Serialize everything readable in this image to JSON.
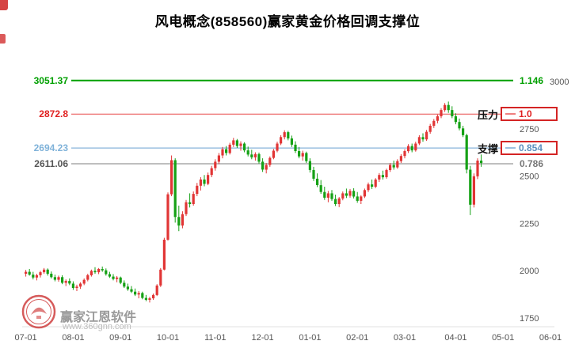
{
  "chart_data": {
    "type": "candlestick",
    "title": "风电概念(858560)赢家黄金价格回调支撑位",
    "symbol": "858560",
    "up_color": "#e13535",
    "down_color": "#15a115",
    "ylim": [
      1750,
      3100
    ],
    "y_ticks": [
      3000,
      2750,
      2500,
      2250,
      2000,
      1750
    ],
    "x_labels": [
      "07-01",
      "08-01",
      "09-01",
      "10-01",
      "11-01",
      "12-01",
      "01-01",
      "02-01",
      "03-01",
      "04-01",
      "05-01",
      "06-01"
    ],
    "x_label_indices": [
      0,
      13,
      26,
      39,
      52,
      65,
      78,
      91,
      104,
      118,
      131,
      144
    ],
    "levels": [
      {
        "value": 3051.37,
        "label": "3051.37",
        "right_label": "1.146",
        "color": "#00a000",
        "label_color": "#00a000",
        "line_width": 2
      },
      {
        "value": 2872.8,
        "label": "2872.8",
        "right_label": "1.0",
        "name": "压力",
        "color": "#ef8080",
        "label_color": "#e02020",
        "value_color": "#e02020",
        "line_width": 1.5
      },
      {
        "value": 2694.23,
        "label": "2694.23",
        "right_label": "0.854",
        "name": "支撑",
        "color": "#9cc0e0",
        "label_color": "#7fb2d9",
        "value_color": "#5b8fbe",
        "line_width": 1.5
      },
      {
        "value": 2611.06,
        "label": "2611.06",
        "right_label": "0.786",
        "color": "#aaaaaa",
        "label_color": "#555555",
        "right_color": "#777777",
        "line_width": 1.5
      }
    ],
    "ohlc": [
      [
        2030,
        2050,
        2015,
        2040
      ],
      [
        2040,
        2055,
        2020,
        2025
      ],
      [
        2025,
        2040,
        2000,
        2010
      ],
      [
        2010,
        2030,
        1995,
        2022
      ],
      [
        2022,
        2045,
        2010,
        2038
      ],
      [
        2038,
        2060,
        2030,
        2052
      ],
      [
        2052,
        2058,
        2020,
        2030
      ],
      [
        2030,
        2042,
        2005,
        2012
      ],
      [
        2012,
        2025,
        1990,
        1998
      ],
      [
        1998,
        2020,
        1988,
        2012
      ],
      [
        2012,
        2022,
        1975,
        1982
      ],
      [
        1982,
        2000,
        1965,
        1992
      ],
      [
        1992,
        2005,
        1970,
        1978
      ],
      [
        1978,
        1990,
        1945,
        1955
      ],
      [
        1955,
        1972,
        1938,
        1962
      ],
      [
        1962,
        1985,
        1950,
        1978
      ],
      [
        1978,
        2005,
        1970,
        1998
      ],
      [
        1998,
        2030,
        1990,
        2022
      ],
      [
        2022,
        2052,
        2015,
        2045
      ],
      [
        2045,
        2065,
        2030,
        2038
      ],
      [
        2038,
        2060,
        2028,
        2055
      ],
      [
        2055,
        2068,
        2040,
        2048
      ],
      [
        2048,
        2058,
        2020,
        2028
      ],
      [
        2028,
        2040,
        2008,
        2015
      ],
      [
        2015,
        2028,
        1995,
        2002
      ],
      [
        2002,
        2018,
        1985,
        2010
      ],
      [
        2010,
        2015,
        1975,
        1982
      ],
      [
        1982,
        1995,
        1955,
        1962
      ],
      [
        1962,
        1978,
        1940,
        1948
      ],
      [
        1948,
        1965,
        1928,
        1935
      ],
      [
        1935,
        1952,
        1912,
        1920
      ],
      [
        1920,
        1938,
        1900,
        1928
      ],
      [
        1928,
        1935,
        1895,
        1902
      ],
      [
        1902,
        1918,
        1885,
        1892
      ],
      [
        1892,
        1908,
        1878,
        1900
      ],
      [
        1900,
        1925,
        1892,
        1918
      ],
      [
        1918,
        1975,
        1912,
        1968
      ],
      [
        1968,
        2060,
        1960,
        2052
      ],
      [
        2052,
        2220,
        2048,
        2210
      ],
      [
        2210,
        2460,
        2205,
        2450
      ],
      [
        2450,
        2655,
        2440,
        2630
      ],
      [
        2630,
        2640,
        2300,
        2330
      ],
      [
        2330,
        2390,
        2255,
        2285
      ],
      [
        2285,
        2360,
        2270,
        2345
      ],
      [
        2345,
        2420,
        2335,
        2408
      ],
      [
        2408,
        2455,
        2380,
        2398
      ],
      [
        2398,
        2465,
        2390,
        2452
      ],
      [
        2452,
        2510,
        2440,
        2495
      ],
      [
        2495,
        2540,
        2470,
        2528
      ],
      [
        2528,
        2552,
        2492,
        2505
      ],
      [
        2505,
        2565,
        2498,
        2552
      ],
      [
        2552,
        2600,
        2540,
        2588
      ],
      [
        2588,
        2635,
        2575,
        2622
      ],
      [
        2622,
        2668,
        2610,
        2655
      ],
      [
        2655,
        2700,
        2640,
        2688
      ],
      [
        2688,
        2705,
        2655,
        2668
      ],
      [
        2668,
        2722,
        2660,
        2712
      ],
      [
        2712,
        2748,
        2700,
        2735
      ],
      [
        2735,
        2742,
        2695,
        2705
      ],
      [
        2705,
        2730,
        2680,
        2718
      ],
      [
        2718,
        2725,
        2672,
        2682
      ],
      [
        2682,
        2702,
        2650,
        2660
      ],
      [
        2660,
        2685,
        2635,
        2645
      ],
      [
        2645,
        2672,
        2628,
        2662
      ],
      [
        2662,
        2670,
        2612,
        2622
      ],
      [
        2622,
        2640,
        2568,
        2580
      ],
      [
        2580,
        2615,
        2560,
        2605
      ],
      [
        2605,
        2650,
        2595,
        2642
      ],
      [
        2642,
        2690,
        2635,
        2680
      ],
      [
        2680,
        2728,
        2672,
        2718
      ],
      [
        2718,
        2762,
        2710,
        2752
      ],
      [
        2752,
        2788,
        2740,
        2778
      ],
      [
        2778,
        2785,
        2735,
        2745
      ],
      [
        2745,
        2760,
        2700,
        2712
      ],
      [
        2712,
        2730,
        2668,
        2678
      ],
      [
        2678,
        2700,
        2640,
        2650
      ],
      [
        2650,
        2680,
        2628,
        2668
      ],
      [
        2668,
        2675,
        2615,
        2625
      ],
      [
        2625,
        2640,
        2565,
        2578
      ],
      [
        2578,
        2595,
        2520,
        2532
      ],
      [
        2532,
        2560,
        2488,
        2498
      ],
      [
        2498,
        2525,
        2452,
        2462
      ],
      [
        2462,
        2490,
        2420,
        2432
      ],
      [
        2432,
        2468,
        2408,
        2455
      ],
      [
        2455,
        2472,
        2415,
        2425
      ],
      [
        2425,
        2448,
        2388,
        2398
      ],
      [
        2398,
        2435,
        2382,
        2428
      ],
      [
        2428,
        2465,
        2418,
        2455
      ],
      [
        2455,
        2480,
        2430,
        2442
      ],
      [
        2442,
        2478,
        2432,
        2468
      ],
      [
        2468,
        2482,
        2428,
        2438
      ],
      [
        2438,
        2462,
        2405,
        2415
      ],
      [
        2415,
        2445,
        2398,
        2438
      ],
      [
        2438,
        2480,
        2430,
        2472
      ],
      [
        2472,
        2512,
        2462,
        2502
      ],
      [
        2502,
        2528,
        2478,
        2490
      ],
      [
        2490,
        2535,
        2482,
        2528
      ],
      [
        2528,
        2562,
        2515,
        2552
      ],
      [
        2552,
        2575,
        2528,
        2540
      ],
      [
        2540,
        2585,
        2532,
        2578
      ],
      [
        2578,
        2615,
        2568,
        2605
      ],
      [
        2605,
        2628,
        2580,
        2592
      ],
      [
        2592,
        2635,
        2585,
        2625
      ],
      [
        2625,
        2662,
        2615,
        2652
      ],
      [
        2652,
        2688,
        2640,
        2678
      ],
      [
        2678,
        2715,
        2668,
        2705
      ],
      [
        2705,
        2718,
        2672,
        2682
      ],
      [
        2682,
        2728,
        2675,
        2718
      ],
      [
        2718,
        2762,
        2710,
        2752
      ],
      [
        2752,
        2772,
        2728,
        2740
      ],
      [
        2740,
        2790,
        2732,
        2780
      ],
      [
        2780,
        2822,
        2770,
        2812
      ],
      [
        2812,
        2848,
        2800,
        2838
      ],
      [
        2838,
        2872,
        2825,
        2862
      ],
      [
        2862,
        2905,
        2852,
        2895
      ],
      [
        2895,
        2932,
        2885,
        2922
      ],
      [
        2922,
        2940,
        2880,
        2895
      ],
      [
        2895,
        2915,
        2852,
        2862
      ],
      [
        2862,
        2878,
        2820,
        2832
      ],
      [
        2832,
        2850,
        2788,
        2798
      ],
      [
        2798,
        2812,
        2752,
        2762
      ],
      [
        2762,
        2770,
        2560,
        2580
      ],
      [
        2580,
        2600,
        2340,
        2395
      ],
      [
        2395,
        2560,
        2380,
        2545
      ],
      [
        2545,
        2640,
        2530,
        2628
      ],
      [
        2628,
        2660,
        2595,
        2615
      ]
    ]
  },
  "watermark": {
    "brand": "赢家江恩软件",
    "url": "www.360gnn.com"
  }
}
